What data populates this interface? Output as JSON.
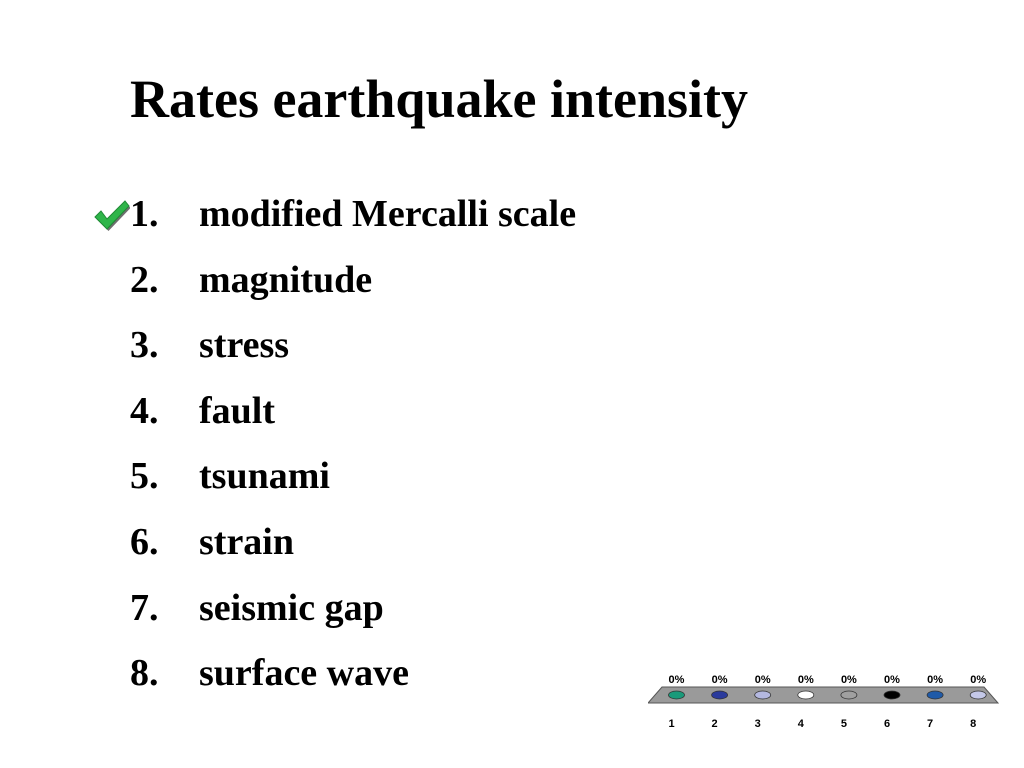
{
  "slide": {
    "title": "Rates earthquake intensity",
    "correct_icon": "checkmark-icon",
    "options": [
      {
        "number": "1.",
        "text": "modified Mercalli scale",
        "correct": true
      },
      {
        "number": "2.",
        "text": "magnitude",
        "correct": false
      },
      {
        "number": "3.",
        "text": "stress",
        "correct": false
      },
      {
        "number": "4.",
        "text": "fault",
        "correct": false
      },
      {
        "number": "5.",
        "text": "tsunami",
        "correct": false
      },
      {
        "number": "6.",
        "text": "strain",
        "correct": false
      },
      {
        "number": "7.",
        "text": "seismic gap",
        "correct": false
      },
      {
        "number": "8.",
        "text": "surface wave",
        "correct": false
      }
    ]
  },
  "chart_data": {
    "type": "bar",
    "categories": [
      "1",
      "2",
      "3",
      "4",
      "5",
      "6",
      "7",
      "8"
    ],
    "values": [
      0,
      0,
      0,
      0,
      0,
      0,
      0,
      0
    ],
    "value_labels": [
      "0%",
      "0%",
      "0%",
      "0%",
      "0%",
      "0%",
      "0%",
      "0%"
    ],
    "colors": [
      "#1a9a7a",
      "#2a3a9c",
      "#b4b8e0",
      "#ffffff",
      "#a0a0a0",
      "#000000",
      "#1f5aa8",
      "#c4c8e8"
    ],
    "ylim": [
      0,
      100
    ]
  }
}
